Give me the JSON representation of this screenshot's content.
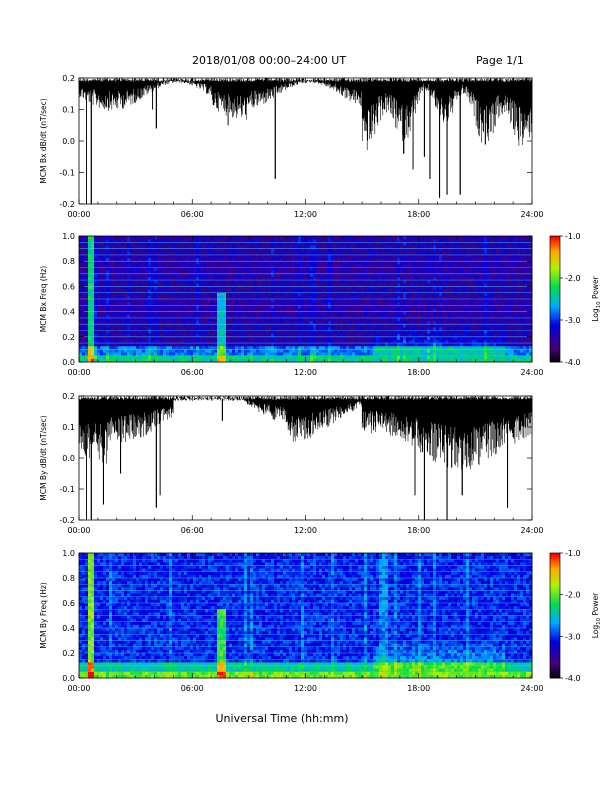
{
  "header": {
    "title": "2018/01/08  00:00–24:00 UT",
    "page": "Page 1/1"
  },
  "xaxis": {
    "ticks": [
      "00:00",
      "06:00",
      "12:00",
      "18:00",
      "24:00"
    ],
    "label": "Universal Time (hh:mm)"
  },
  "colorbar": {
    "ticks": [
      "-1.0",
      "-2.0",
      "-3.0",
      "-4.0"
    ],
    "label_main": "Log",
    "label_sub": "10",
    "label_tail": " Power"
  },
  "chart_data": [
    {
      "type": "line",
      "ylabel": "MCM Bx dB/dt (nT/sec)",
      "ylim": [
        -0.2,
        0.2
      ],
      "yticks": [
        "0.2",
        "0.1",
        "0.0",
        "-0.1",
        "-0.2"
      ],
      "xlim": [
        0,
        24
      ],
      "series": [
        {
          "dips": [
            [
              0.4,
              -0.2
            ],
            [
              0.65,
              -0.2
            ],
            [
              1.2,
              0.12
            ],
            [
              3.9,
              0.1
            ],
            [
              4.1,
              0.04
            ],
            [
              7.9,
              0.05
            ],
            [
              10.4,
              -0.12
            ],
            [
              15.8,
              0.06
            ],
            [
              17.2,
              -0.04
            ],
            [
              17.7,
              -0.09
            ],
            [
              18.3,
              -0.05
            ],
            [
              18.6,
              -0.12
            ],
            [
              19.1,
              -0.18
            ],
            [
              19.5,
              -0.17
            ],
            [
              20.2,
              -0.17
            ],
            [
              21.2,
              0.08
            ]
          ]
        }
      ]
    },
    {
      "type": "heatmap",
      "ylabel": "MCM Bx Freq (Hz)",
      "ylim": [
        0.0,
        1.0
      ],
      "yticks": [
        "1.0",
        "0.8",
        "0.6",
        "0.4",
        "0.2",
        "0.0"
      ],
      "xlim": [
        0,
        24
      ],
      "zlim": [
        -4.0,
        -1.0
      ]
    },
    {
      "type": "line",
      "ylabel": "MCM By dB/dt (nT/sec)",
      "ylim": [
        -0.2,
        0.2
      ],
      "yticks": [
        "0.2",
        "0.1",
        "0.0",
        "-0.1",
        "-0.2"
      ],
      "xlim": [
        0,
        24
      ],
      "series": [
        {
          "dips": [
            [
              0.4,
              -0.2
            ],
            [
              0.65,
              -0.2
            ],
            [
              1.3,
              -0.15
            ],
            [
              2.2,
              -0.05
            ],
            [
              4.1,
              -0.16
            ],
            [
              4.3,
              -0.12
            ],
            [
              7.6,
              0.12
            ],
            [
              17.8,
              -0.12
            ],
            [
              18.3,
              -0.2
            ],
            [
              19.5,
              -0.2
            ],
            [
              20.3,
              -0.12
            ],
            [
              22.7,
              -0.16
            ]
          ]
        }
      ]
    },
    {
      "type": "heatmap",
      "ylabel": "MCM By Freq (Hz)",
      "ylim": [
        0.0,
        1.0
      ],
      "yticks": [
        "1.0",
        "0.8",
        "0.6",
        "0.4",
        "0.2",
        "0.0"
      ],
      "xlim": [
        0,
        24
      ],
      "zlim": [
        -4.0,
        -1.0
      ]
    }
  ]
}
